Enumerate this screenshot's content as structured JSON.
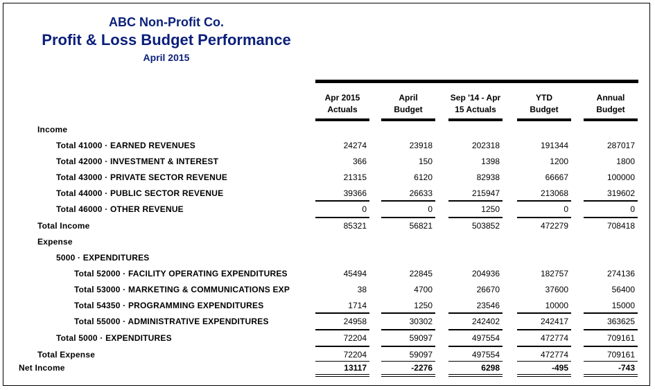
{
  "report": {
    "company": "ABC Non-Profit Co.",
    "title": "Profit & Loss Budget Performance",
    "period": "April 2015"
  },
  "columns": [
    "Apr 2015\nActuals",
    "April\nBudget",
    "Sep '14 - Apr\n15 Actuals",
    "YTD\nBudget",
    "Annual\nBudget"
  ],
  "rows": [
    {
      "label": "Income",
      "values": []
    },
    {
      "label": "Total 41000 · EARNED REVENUES",
      "values": [
        "24274",
        "23918",
        "202318",
        "191344",
        "287017"
      ]
    },
    {
      "label": "Total 42000 · INVESTMENT & INTEREST",
      "values": [
        "366",
        "150",
        "1398",
        "1200",
        "1800"
      ]
    },
    {
      "label": "Total 43000 · PRIVATE SECTOR REVENUE",
      "values": [
        "21315",
        "6120",
        "82938",
        "66667",
        "100000"
      ]
    },
    {
      "label": "Total 44000 · PUBLIC SECTOR REVENUE",
      "values": [
        "39366",
        "26633",
        "215947",
        "213068",
        "319602"
      ]
    },
    {
      "label": "Total 46000 · OTHER REVENUE",
      "values": [
        "0",
        "0",
        "1250",
        "0",
        "0"
      ]
    },
    {
      "label": "Total Income",
      "values": [
        "85321",
        "56821",
        "503852",
        "472279",
        "708418"
      ]
    },
    {
      "label": "Expense",
      "values": []
    },
    {
      "label": "5000 · EXPENDITURES",
      "values": []
    },
    {
      "label": "Total 52000 · FACILITY OPERATING EXPENDITURES",
      "values": [
        "45494",
        "22845",
        "204936",
        "182757",
        "274136"
      ]
    },
    {
      "label": "Total 53000 · MARKETING & COMMUNICATIONS EXP",
      "values": [
        "38",
        "4700",
        "26670",
        "37600",
        "56400"
      ]
    },
    {
      "label": "Total 54350 · PROGRAMMING EXPENDITURES",
      "values": [
        "1714",
        "1250",
        "23546",
        "10000",
        "15000"
      ]
    },
    {
      "label": "Total 55000 · ADMINISTRATIVE EXPENDITURES",
      "values": [
        "24958",
        "30302",
        "242402",
        "242417",
        "363625"
      ]
    },
    {
      "label": "Total 5000 · EXPENDITURES",
      "values": [
        "72204",
        "59097",
        "497554",
        "472774",
        "709161"
      ]
    },
    {
      "label": "Total Expense",
      "values": [
        "72204",
        "59097",
        "497554",
        "472774",
        "709161"
      ]
    },
    {
      "label": "Net Income",
      "values": [
        "13117",
        "-2276",
        "6298",
        "-495",
        "-743"
      ]
    }
  ]
}
